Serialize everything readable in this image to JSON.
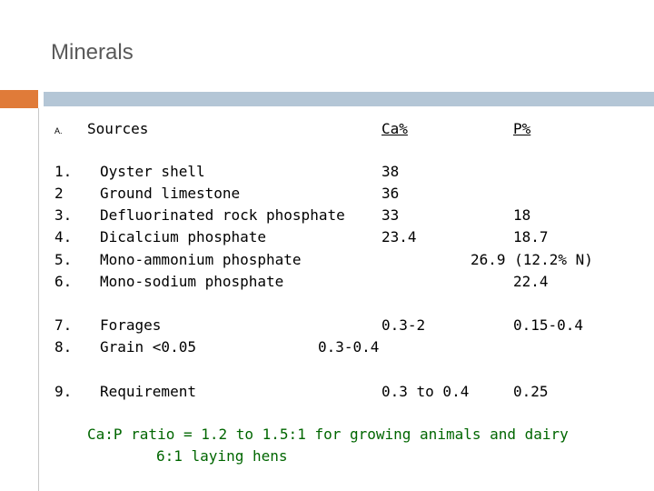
{
  "header": {
    "title": "Minerals"
  },
  "table": {
    "label": "A.",
    "headers": [
      "Sources",
      "Ca%",
      "P%"
    ],
    "rows": [
      [
        "1.",
        "Oyster shell",
        "38",
        null
      ],
      [
        "2",
        "Ground limestone",
        "36",
        null
      ],
      [
        "3.",
        "Defluorinated rock phosphate",
        "33",
        "18"
      ],
      [
        "4.",
        "Dicalcium phosphate",
        "23.4",
        "18.7"
      ],
      [
        "5.",
        "Mono-ammonium phosphate",
        null,
        "26.9 (12.2% N)"
      ],
      [
        "6.",
        "Mono-sodium phosphate",
        null,
        "22.4"
      ],
      [
        "7.",
        "Forages",
        "0.3-2",
        "0.15-0.4"
      ],
      [
        "8.",
        "Grain <0.05",
        "0.3-0.4",
        null
      ],
      [
        "9.",
        "Requirement",
        "0.3 to 0.4",
        "0.25"
      ]
    ]
  },
  "footer": {
    "lines": [
      "Ca:P ratio = 1.2 to 1.5:1 for growing animals and dairy",
      "6:1 laying hens"
    ]
  }
}
